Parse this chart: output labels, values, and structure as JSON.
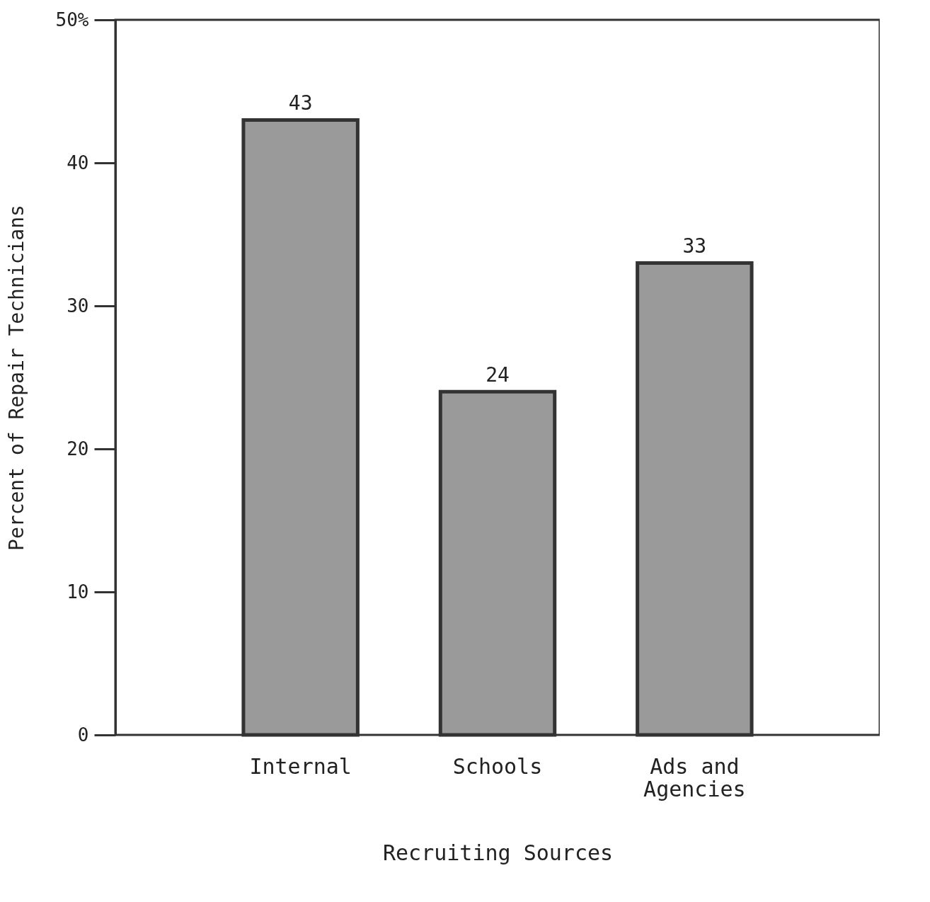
{
  "chart_data": {
    "type": "bar",
    "categories": [
      "Internal",
      "Schools",
      "Ads and Agencies"
    ],
    "values": [
      43,
      24,
      33
    ],
    "color": "#9a9a9a",
    "ylabel": "Percent of Repair Technicians",
    "xlabel": "Recruiting Sources",
    "ylim": [
      0,
      50
    ],
    "yticks": [
      0,
      10,
      20,
      30,
      40,
      {
        "value": 50,
        "label": "50%"
      }
    ],
    "data_labels": true,
    "grid": false
  }
}
